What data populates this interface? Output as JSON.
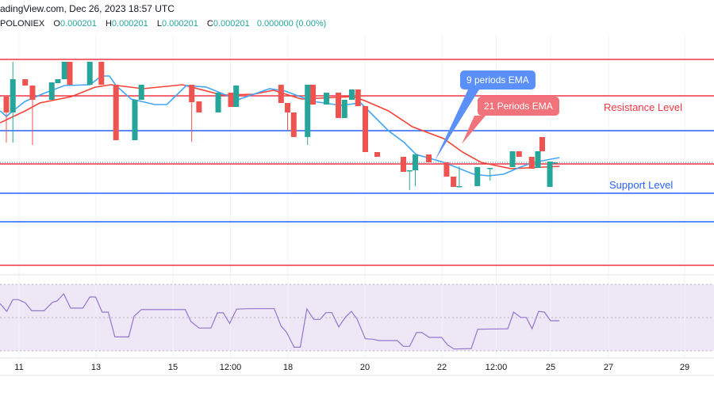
{
  "header": {
    "source_line": "adingView.com, Dec 26, 2023 18:57 UTC",
    "exchange": "POLONIEX",
    "ohlc": [
      {
        "key": "O",
        "value": "0.000201"
      },
      {
        "key": "H",
        "value": "0.000201"
      },
      {
        "key": "L",
        "value": "0.000201"
      },
      {
        "key": "C",
        "value": "0.000201"
      }
    ],
    "change": "0.000000 (0.00%)"
  },
  "annotations": {
    "resistance_label": "Resistance Level",
    "support_label": "Support Level",
    "ema9_callout": "9 periods EMA",
    "ema21_callout": "21 Periods EMA"
  },
  "colors": {
    "up": "#26a69a",
    "down": "#ef5350",
    "ema9": "#42a5f5",
    "ema21": "#f44336",
    "resistance_line": "#f23645",
    "support_line": "#2962ff",
    "rsi": "#9575cd",
    "rsi_band": "#ede7f6",
    "ema9_callout_bg": "#5b8ff9",
    "ema21_callout_bg": "#f0727a"
  },
  "chart_data": [
    {
      "type": "candlestick",
      "x_unit": "day of Dec 2023",
      "x_ticks": [
        {
          "day": 11,
          "label": "11"
        },
        {
          "day": 13,
          "label": "13"
        },
        {
          "day": 15,
          "label": "15"
        },
        {
          "day": 16.5,
          "label": "12:00"
        },
        {
          "day": 18,
          "label": "18"
        },
        {
          "day": 20,
          "label": "20"
        },
        {
          "day": 22,
          "label": "22"
        },
        {
          "day": 23.5,
          "label": "12:00"
        },
        {
          "day": 25,
          "label": "25"
        },
        {
          "day": 27,
          "label": "27"
        },
        {
          "day": 29,
          "label": "29"
        }
      ],
      "last_price": 0.000201,
      "candles": [
        [
          10.67,
          0.0002093,
          0.0002093,
          0.0002035,
          0.0002073
        ],
        [
          10.84,
          0.0002073,
          0.0002137,
          0.0002035,
          0.0002115
        ],
        [
          11.16,
          0.0002115,
          0.0002115,
          0.0002107,
          0.0002107
        ],
        [
          11.35,
          0.0002107,
          0.0002107,
          0.0002032,
          0.0002089
        ],
        [
          11.85,
          0.0002089,
          0.0002111,
          0.0002089,
          0.0002111
        ],
        [
          12.01,
          0.000211,
          0.0002115,
          0.000211,
          0.0002115
        ],
        [
          12.18,
          0.0002115,
          0.0002137,
          0.0002115,
          0.0002137
        ],
        [
          12.32,
          0.0002137,
          0.0002137,
          0.0002108,
          0.0002108
        ],
        [
          12.84,
          0.0002108,
          0.0002137,
          0.0002108,
          0.0002137
        ],
        [
          13.14,
          0.0002137,
          0.0002137,
          0.0002108,
          0.0002108
        ],
        [
          13.52,
          0.0002108,
          0.0002108,
          0.0002038,
          0.0002038
        ],
        [
          14.01,
          0.0002038,
          0.0002089,
          0.0002038,
          0.0002089
        ],
        [
          14.18,
          0.0002089,
          0.0002108,
          0.0002089,
          0.0002108
        ],
        [
          15.49,
          0.0002108,
          0.0002108,
          0.0002036,
          0.0002086
        ],
        [
          15.68,
          0.0002087,
          0.0002087,
          0.0002073,
          0.0002073
        ],
        [
          16.18,
          0.0002073,
          0.0002098,
          0.0002073,
          0.0002098
        ],
        [
          16.51,
          0.0002098,
          0.0002098,
          0.000208,
          0.000208
        ],
        [
          16.65,
          0.000208,
          0.0002107,
          0.000208,
          0.0002107
        ],
        [
          17.82,
          0.0002108,
          0.0002108,
          0.0002085,
          0.0002085
        ],
        [
          17.99,
          0.0002085,
          0.0002085,
          0.000205,
          0.0002073
        ],
        [
          18.15,
          0.0002073,
          0.0002073,
          0.0002042,
          0.0002042
        ],
        [
          18.51,
          0.0002042,
          0.0002108,
          0.0002032,
          0.0002108
        ],
        [
          18.65,
          0.0002108,
          0.0002108,
          0.0002083,
          0.0002083
        ],
        [
          19.0,
          0.0002083,
          0.0002098,
          0.0002083,
          0.0002098
        ],
        [
          19.31,
          0.0002098,
          0.0002098,
          0.0002066,
          0.0002066
        ],
        [
          19.47,
          0.0002066,
          0.0002089,
          0.0002066,
          0.0002089
        ],
        [
          19.66,
          0.0002089,
          0.0002102,
          0.0002089,
          0.0002102
        ],
        [
          19.82,
          0.0002102,
          0.0002102,
          0.0002081,
          0.0002081
        ],
        [
          20.01,
          0.0002081,
          0.0002081,
          0.0002023,
          0.0002023
        ],
        [
          20.32,
          0.0002023,
          0.0002023,
          0.0002017,
          0.0002017
        ],
        [
          21.0,
          0.0002017,
          0.0002017,
          0.0001998,
          0.0001998
        ],
        [
          21.16,
          0.0001999,
          0.0002,
          0.0001975,
          0.0002
        ],
        [
          21.31,
          0.0002,
          0.000202,
          0.000198,
          0.000202
        ],
        [
          21.66,
          0.000202,
          0.000202,
          0.000201,
          0.000201
        ],
        [
          22.13,
          0.000201,
          0.000201,
          0.0001992,
          0.0001992
        ],
        [
          22.32,
          0.0001992,
          0.0001992,
          0.0001979,
          0.0001979
        ],
        [
          22.48,
          0.000198,
          0.0002005,
          0.0001979,
          0.000198
        ],
        [
          22.98,
          0.000198,
          0.0002004,
          0.000198,
          0.0002004
        ],
        [
          23.33,
          0.0002003,
          0.0002003,
          0.0001987,
          0.0002003
        ],
        [
          23.95,
          0.0002004,
          0.0002024,
          0.0002004,
          0.0002024
        ],
        [
          24.13,
          0.0002024,
          0.0002024,
          0.0002017,
          0.0002017
        ],
        [
          24.48,
          0.0002017,
          0.0002017,
          0.0002002,
          0.0002002
        ],
        [
          24.65,
          0.0002003,
          0.0002024,
          0.0002003,
          0.0002024
        ],
        [
          24.77,
          0.0002042,
          0.0002042,
          0.0002024,
          0.0002024
        ],
        [
          24.98,
          0.0001979,
          0.0002011,
          0.0001979,
          0.0002011
        ],
        [
          25.14,
          0.000201,
          0.000201,
          0.000201,
          0.000201
        ]
      ],
      "candle_fields": [
        "day",
        "open",
        "high",
        "low",
        "close"
      ],
      "ema9": [
        [
          10.51,
          0.0002075
        ],
        [
          10.67,
          0.0002068
        ],
        [
          10.84,
          0.0002075
        ],
        [
          11.16,
          0.0002087
        ],
        [
          11.64,
          0.0002097
        ],
        [
          12.18,
          0.0002107
        ],
        [
          12.84,
          0.0002108
        ],
        [
          13.14,
          0.0002119
        ],
        [
          13.35,
          0.0002119
        ],
        [
          13.52,
          0.0002107
        ],
        [
          13.91,
          0.000209
        ],
        [
          14.53,
          0.0002083
        ],
        [
          14.84,
          0.0002083
        ],
        [
          15.35,
          0.0002107
        ],
        [
          15.87,
          0.0002105
        ],
        [
          16.69,
          0.0002089
        ],
        [
          17.52,
          0.0002103
        ],
        [
          17.93,
          0.00021
        ],
        [
          18.65,
          0.0002087
        ],
        [
          19.37,
          0.0002082
        ],
        [
          19.89,
          0.0002085
        ],
        [
          20.2,
          0.000207
        ],
        [
          20.61,
          0.000205
        ],
        [
          21.02,
          0.0002035
        ],
        [
          21.33,
          0.000202
        ],
        [
          22.05,
          0.000201
        ],
        [
          22.88,
          0.0001995
        ],
        [
          23.29,
          0.0001993
        ],
        [
          23.7,
          0.0001995
        ],
        [
          24.11,
          0.0002003
        ],
        [
          24.53,
          0.000201
        ],
        [
          25.31,
          0.0002016
        ]
      ],
      "ema21": [
        [
          10.51,
          0.000206
        ],
        [
          11.16,
          0.0002075
        ],
        [
          11.54,
          0.0002085
        ],
        [
          12.36,
          0.0002093
        ],
        [
          12.98,
          0.0002105
        ],
        [
          13.39,
          0.0002108
        ],
        [
          14.22,
          0.0002103
        ],
        [
          15.25,
          0.0002108
        ],
        [
          16.28,
          0.0002095
        ],
        [
          17.1,
          0.0002096
        ],
        [
          17.62,
          0.0002101
        ],
        [
          18.34,
          0.000209
        ],
        [
          19.68,
          0.0002093
        ],
        [
          19.99,
          0.0002088
        ],
        [
          20.61,
          0.0002075
        ],
        [
          21.23,
          0.0002055
        ],
        [
          22.05,
          0.000204
        ],
        [
          22.57,
          0.0002023
        ],
        [
          23.08,
          0.000201
        ],
        [
          23.91,
          0.0002002
        ],
        [
          25.31,
          0.0002005
        ]
      ],
      "horizontal_levels": [
        {
          "price": 0.000214,
          "kind": "resistance"
        },
        {
          "price": 0.0002094,
          "kind": "resistance"
        },
        {
          "price": 0.000205,
          "kind": "support"
        },
        {
          "price": 0.0002008,
          "kind": "resistance"
        },
        {
          "price": 0.0001971,
          "kind": "support"
        },
        {
          "price": 0.0001935,
          "kind": "support"
        },
        {
          "price": 0.000188,
          "kind": "resistance"
        }
      ]
    },
    {
      "type": "line",
      "indicator": "RSI",
      "ylim": [
        30,
        70
      ],
      "bands": [
        70,
        50,
        30
      ],
      "points": [
        [
          10.51,
          58.4
        ],
        [
          10.68,
          53.7
        ],
        [
          10.84,
          60.8
        ],
        [
          10.98,
          60.8
        ],
        [
          11.16,
          58.9
        ],
        [
          11.33,
          54.1
        ],
        [
          11.65,
          54.1
        ],
        [
          11.87,
          59.2
        ],
        [
          11.99,
          60
        ],
        [
          12.16,
          64.3
        ],
        [
          12.34,
          55.7
        ],
        [
          12.66,
          55.7
        ],
        [
          12.84,
          62.4
        ],
        [
          12.99,
          62.4
        ],
        [
          13.16,
          53.3
        ],
        [
          13.32,
          53.3
        ],
        [
          13.49,
          38.4
        ],
        [
          13.85,
          38.4
        ],
        [
          13.99,
          50.8
        ],
        [
          14.18,
          54.8
        ],
        [
          15.32,
          54.8
        ],
        [
          15.47,
          47.6
        ],
        [
          15.68,
          43.7
        ],
        [
          15.99,
          43.7
        ],
        [
          16.16,
          52.9
        ],
        [
          16.31,
          52.9
        ],
        [
          16.48,
          46.5
        ],
        [
          16.66,
          55.1
        ],
        [
          16.99,
          55.4
        ],
        [
          17.64,
          55.4
        ],
        [
          17.82,
          44.9
        ],
        [
          17.96,
          41.3
        ],
        [
          18.16,
          32.2
        ],
        [
          18.32,
          32.2
        ],
        [
          18.49,
          55.2
        ],
        [
          18.67,
          48.9
        ],
        [
          18.83,
          48.9
        ],
        [
          18.99,
          53
        ],
        [
          19.14,
          53
        ],
        [
          19.32,
          44.4
        ],
        [
          19.5,
          50.5
        ],
        [
          19.65,
          53.7
        ],
        [
          19.8,
          48.9
        ],
        [
          20.01,
          37.3
        ],
        [
          20.21,
          37
        ],
        [
          20.36,
          36.2
        ],
        [
          20.84,
          36.2
        ],
        [
          21.0,
          32.7
        ],
        [
          21.16,
          32.7
        ],
        [
          21.34,
          41
        ],
        [
          21.48,
          41
        ],
        [
          21.67,
          38.1
        ],
        [
          21.99,
          38.1
        ],
        [
          22.16,
          33.5
        ],
        [
          22.34,
          31.1
        ],
        [
          22.81,
          31.4
        ],
        [
          22.99,
          43
        ],
        [
          23.82,
          43.3
        ],
        [
          23.98,
          53.3
        ],
        [
          24.18,
          50.1
        ],
        [
          24.33,
          50.1
        ],
        [
          24.49,
          43.3
        ],
        [
          24.67,
          53.7
        ],
        [
          24.83,
          53.3
        ],
        [
          25.0,
          48.1
        ],
        [
          25.3,
          48.1
        ]
      ]
    }
  ]
}
